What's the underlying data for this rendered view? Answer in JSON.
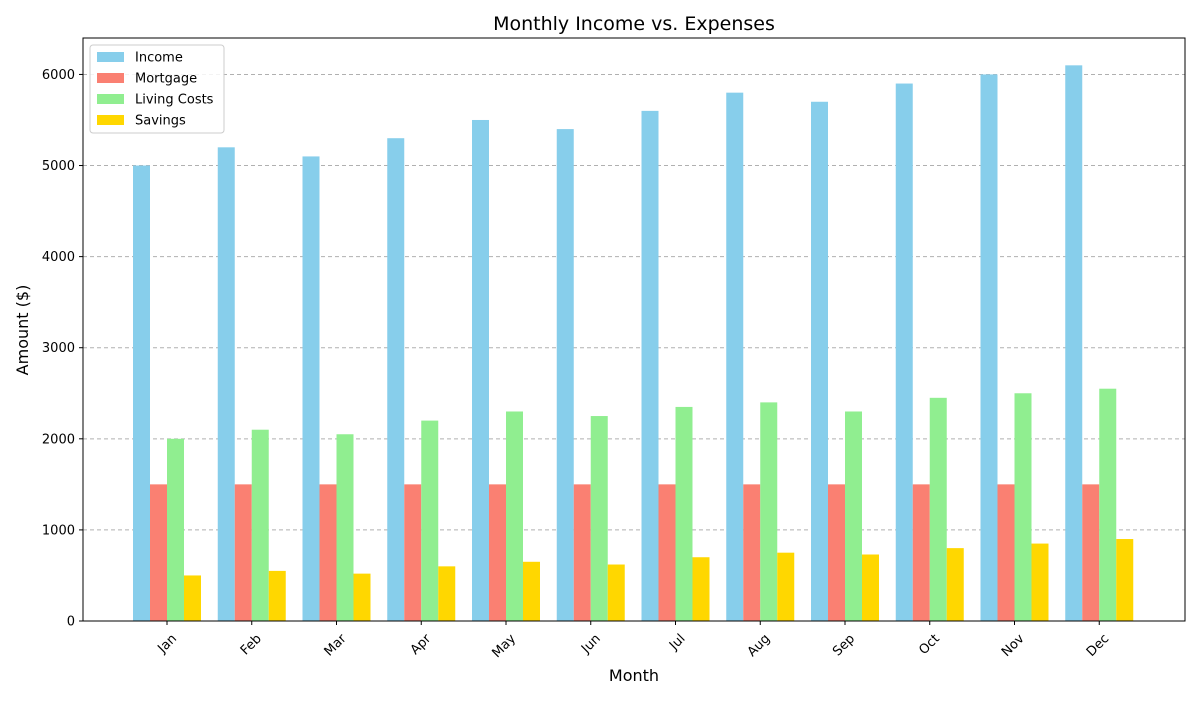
{
  "chart_data": {
    "type": "bar",
    "title": "Monthly Income vs. Expenses",
    "xlabel": "Month",
    "ylabel": "Amount ($)",
    "categories": [
      "Jan",
      "Feb",
      "Mar",
      "Apr",
      "May",
      "Jun",
      "Jul",
      "Aug",
      "Sep",
      "Oct",
      "Nov",
      "Dec"
    ],
    "series": [
      {
        "name": "Income",
        "color": "#87ceeb",
        "values": [
          5000,
          5200,
          5100,
          5300,
          5500,
          5400,
          5600,
          5800,
          5700,
          5900,
          6000,
          6100
        ]
      },
      {
        "name": "Mortgage",
        "color": "#fa8072",
        "values": [
          1500,
          1500,
          1500,
          1500,
          1500,
          1500,
          1500,
          1500,
          1500,
          1500,
          1500,
          1500
        ]
      },
      {
        "name": "Living Costs",
        "color": "#90ee90",
        "values": [
          2000,
          2100,
          2050,
          2200,
          2300,
          2250,
          2350,
          2400,
          2300,
          2450,
          2500,
          2550
        ]
      },
      {
        "name": "Savings",
        "color": "#ffd700",
        "values": [
          500,
          550,
          520,
          600,
          650,
          620,
          700,
          750,
          730,
          800,
          850,
          900
        ]
      }
    ],
    "ylim": [
      0,
      6400
    ],
    "yticks": [
      0,
      1000,
      2000,
      3000,
      4000,
      5000,
      6000
    ],
    "grid": "y-dashed",
    "legend_position": "top-left"
  }
}
